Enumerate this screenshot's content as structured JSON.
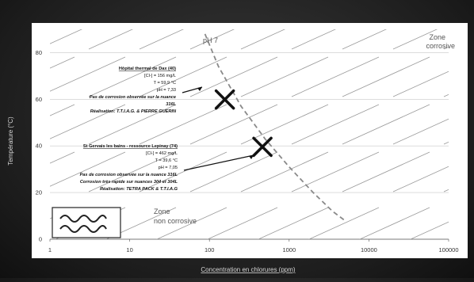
{
  "chart_data": {
    "type": "scatter",
    "title": "",
    "xlabel": "Concentration en chlorures (ppm)",
    "ylabel": "Température (°C)",
    "x_scale": "log",
    "xlim": [
      1,
      100000
    ],
    "ylim": [
      0,
      90
    ],
    "x_ticks": [
      "1",
      "10",
      "100",
      "1000",
      "10000",
      "100000"
    ],
    "y_ticks": [
      "0",
      "20",
      "40",
      "60",
      "80"
    ],
    "grid": true,
    "points": [
      {
        "x": 156,
        "y": 59.9,
        "marker": "X"
      },
      {
        "x": 462,
        "y": 39.6,
        "marker": "X"
      }
    ],
    "curve": {
      "label": "pH 7",
      "style": "dashed",
      "x": [
        88,
        130,
        250,
        500,
        1000,
        2000,
        3500,
        5000
      ],
      "y": [
        88,
        74,
        57,
        43,
        31,
        20,
        12,
        8
      ]
    },
    "zones": [
      "Zone corrosive",
      "Zone non corrosive"
    ],
    "annotations": [
      {
        "title": "Hôpital thermal de Dax (40)",
        "lines": [
          "[Cl-] = 156 mg/L",
          "T = 59,9 °C",
          "pH = 7,33"
        ],
        "note_lines": [
          "Pas de corrosion observée sur la nuance",
          "316L",
          "Réalisation: T.T.I.A.G. & PIERRE GUERIN"
        ]
      },
      {
        "title": "St Gervais les bains - ressource Lepinay (74)",
        "lines": [
          "[Cl-] = 462 mg/L",
          "T = 39,6 °C",
          "pH = 7,05"
        ],
        "note_lines": [
          "Pas de corrosion observée sur la nuance 316L",
          "Corrosion très rapide sur nuances 304 et 304L",
          "Réalisation: TETRA PACK & T.T.I.A.G"
        ]
      }
    ]
  }
}
